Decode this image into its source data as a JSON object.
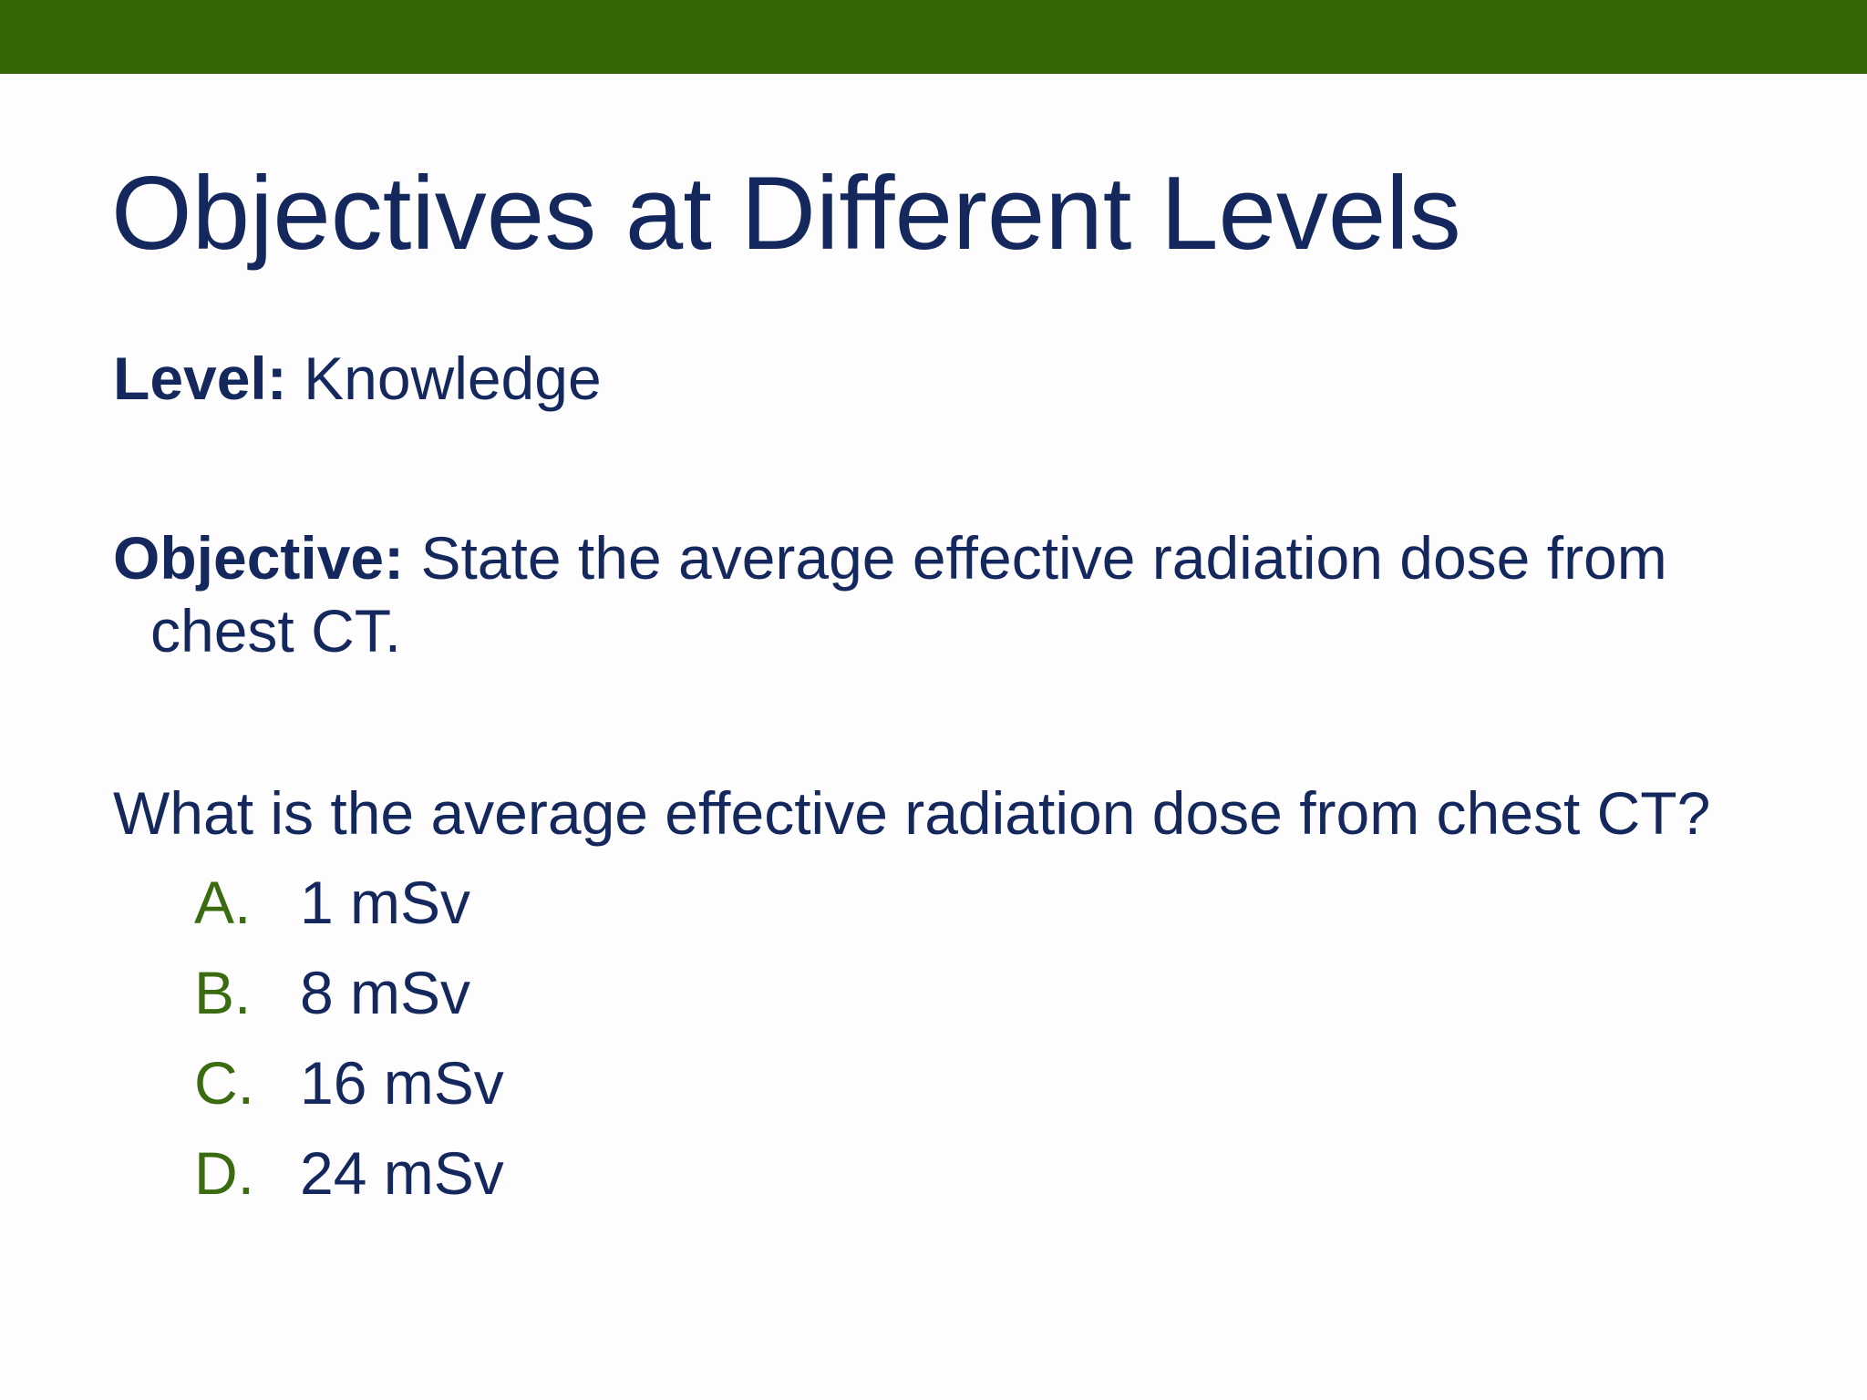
{
  "slide": {
    "title": "Objectives at Different Levels",
    "level": {
      "label": "Level:",
      "value": "Knowledge"
    },
    "objective": {
      "label": "Objective:",
      "text": "State the average effective radiation dose from chest CT."
    },
    "question": "What is the average effective radiation dose from chest CT?",
    "options": [
      {
        "letter": "A.",
        "text": "1 mSv"
      },
      {
        "letter": "B.",
        "text": "8 mSv"
      },
      {
        "letter": "C.",
        "text": "16 mSv"
      },
      {
        "letter": "D.",
        "text": "24 mSv"
      }
    ]
  }
}
